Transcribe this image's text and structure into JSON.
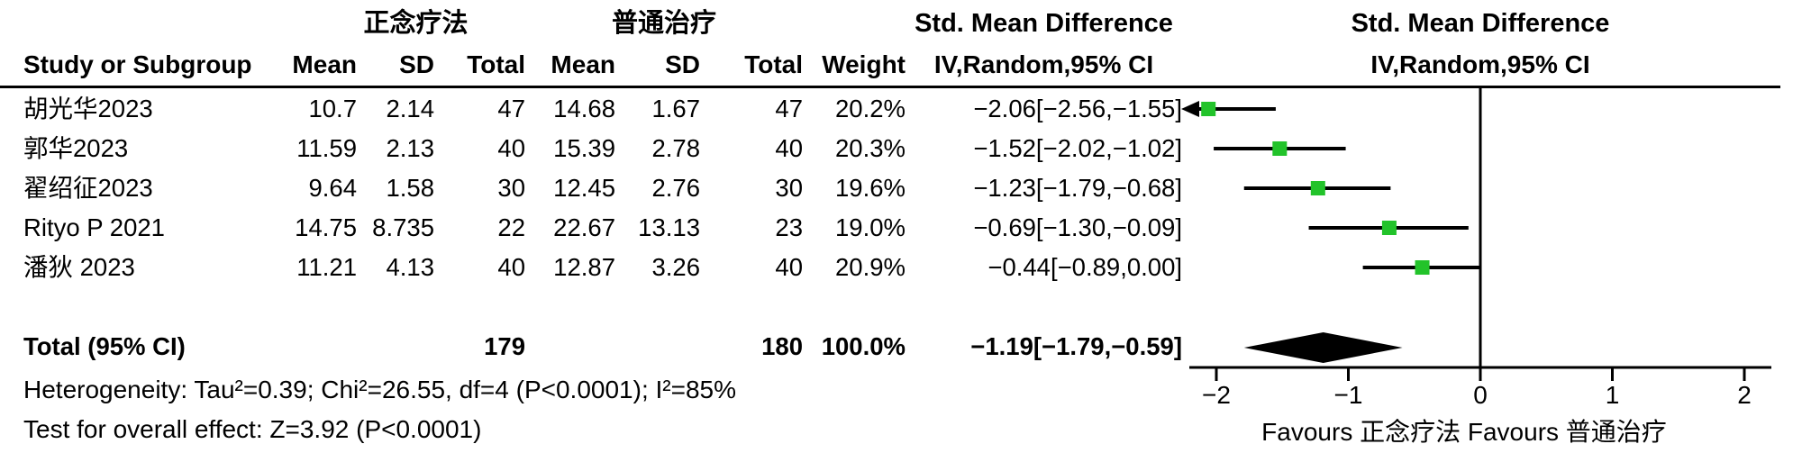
{
  "chart_data": {
    "type": "forest",
    "effect_measure": "Std. Mean Difference",
    "method": "IV,Random,95% CI",
    "group1_label": "正念疗法",
    "group2_label": "普通治疗",
    "columns": [
      "Study or Subgroup",
      "Mean",
      "SD",
      "Total",
      "Mean",
      "SD",
      "Total",
      "Weight",
      "IV,Random,95% CI"
    ],
    "studies": [
      {
        "study": "胡光华2023",
        "mean1": "10.7",
        "sd1": "2.14",
        "total1": "47",
        "mean2": "14.68",
        "sd2": "1.67",
        "total2": "47",
        "weight": "20.2%",
        "ci_text": "−2.06[−2.56,−1.55]",
        "effect": -2.06,
        "ci_low": -2.56,
        "ci_high": -1.55
      },
      {
        "study": "郭华2023",
        "mean1": "11.59",
        "sd1": "2.13",
        "total1": "40",
        "mean2": "15.39",
        "sd2": "2.78",
        "total2": "40",
        "weight": "20.3%",
        "ci_text": "−1.52[−2.02,−1.02]",
        "effect": -1.52,
        "ci_low": -2.02,
        "ci_high": -1.02
      },
      {
        "study": "翟绍征2023",
        "mean1": "9.64",
        "sd1": "1.58",
        "total1": "30",
        "mean2": "12.45",
        "sd2": "2.76",
        "total2": "30",
        "weight": "19.6%",
        "ci_text": "−1.23[−1.79,−0.68]",
        "effect": -1.23,
        "ci_low": -1.79,
        "ci_high": -0.68
      },
      {
        "study": "Rityo P 2021",
        "mean1": "14.75",
        "sd1": "8.735",
        "total1": "22",
        "mean2": "22.67",
        "sd2": "13.13",
        "total2": "23",
        "weight": "19.0%",
        "ci_text": "−0.69[−1.30,−0.09]",
        "effect": -0.69,
        "ci_low": -1.3,
        "ci_high": -0.09
      },
      {
        "study": "潘狄 2023",
        "mean1": "11.21",
        "sd1": "4.13",
        "total1": "40",
        "mean2": "12.87",
        "sd2": "3.26",
        "total2": "40",
        "weight": "20.9%",
        "ci_text": "−0.44[−0.89,0.00]",
        "effect": -0.44,
        "ci_low": -0.89,
        "ci_high": 0.0
      }
    ],
    "total": {
      "label": "Total (95% CI)",
      "total1": "179",
      "total2": "180",
      "weight": "100.0%",
      "ci_text": "−1.19[−1.79,−0.59]",
      "effect": -1.19,
      "ci_low": -1.79,
      "ci_high": -0.59
    },
    "heterogeneity": "Heterogeneity: Tau²=0.39; Chi²=26.55, df=4 (P<0.0001); I²=85%",
    "overall_effect": "Test for overall effect: Z=3.92 (P<0.0001)",
    "axis": {
      "ticks": [
        -2,
        -1,
        0,
        1,
        2
      ],
      "min": -2.2,
      "max": 2.2,
      "grid": false
    },
    "favours": "Favours 正念疗法  Favours 普通治疗",
    "marker_color": "#22c32a",
    "line_color": "#000000"
  }
}
